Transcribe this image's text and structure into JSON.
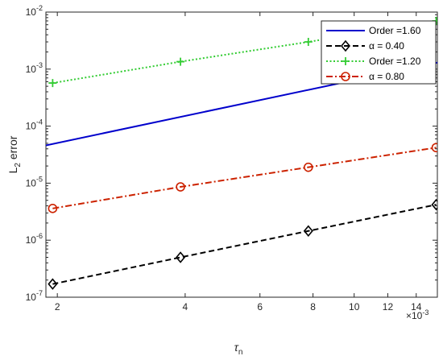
{
  "chart_data": {
    "type": "line",
    "xscale": "log",
    "yscale": "log",
    "xlim": [
      0.00188,
      0.0157
    ],
    "ylim": [
      1e-07,
      0.01
    ],
    "grid": false,
    "legend_placement": "top-right",
    "xlabel": "τ",
    "xlabel_sub": "n",
    "ylabel": "L",
    "ylabel_sub": "2",
    "ylabel_rest": " error",
    "x_multiplier_label": "×10",
    "x_multiplier_exp": "-3",
    "x_ticks": [
      {
        "value": 0.002,
        "label": "2"
      },
      {
        "value": 0.004,
        "label": "4"
      },
      {
        "value": 0.006,
        "label": "6"
      },
      {
        "value": 0.008,
        "label": "8"
      },
      {
        "value": 0.01,
        "label": "10"
      },
      {
        "value": 0.012,
        "label": "12"
      },
      {
        "value": 0.014,
        "label": "14"
      }
    ],
    "y_ticks": [
      {
        "value": 1e-07,
        "base": "10",
        "exp": "-7"
      },
      {
        "value": 1e-06,
        "base": "10",
        "exp": "-6"
      },
      {
        "value": 1e-05,
        "base": "10",
        "exp": "-5"
      },
      {
        "value": 0.0001,
        "base": "10",
        "exp": "-4"
      },
      {
        "value": 0.001,
        "base": "10",
        "exp": "-3"
      },
      {
        "value": 0.01,
        "base": "10",
        "exp": "-2"
      }
    ],
    "series": [
      {
        "name": "Order =1.60",
        "color": "#0000cc",
        "dash": "solid",
        "marker": "none",
        "x": [
          0.00188,
          0.0157
        ],
        "y": [
          4.6e-05,
          0.0013
        ]
      },
      {
        "name": "α = 0.40",
        "color": "#000000",
        "dash": "dashed",
        "marker": "diamond",
        "x": [
          0.00195,
          0.0039,
          0.0078,
          0.0156
        ],
        "y": [
          1.7e-07,
          5e-07,
          1.45e-06,
          4.2e-06
        ]
      },
      {
        "name": "Order =1.20",
        "color": "#33cc33",
        "dash": "dotted",
        "marker": "plus",
        "x": [
          0.00195,
          0.0039,
          0.0078,
          0.0156
        ],
        "y": [
          0.00057,
          0.00135,
          0.003,
          0.007
        ]
      },
      {
        "name": "α = 0.80",
        "color": "#cc2200",
        "dash": "dashdot",
        "marker": "circle",
        "x": [
          0.00195,
          0.0039,
          0.0078,
          0.0156
        ],
        "y": [
          3.6e-06,
          8.6e-06,
          1.9e-05,
          4.2e-05
        ]
      }
    ]
  }
}
